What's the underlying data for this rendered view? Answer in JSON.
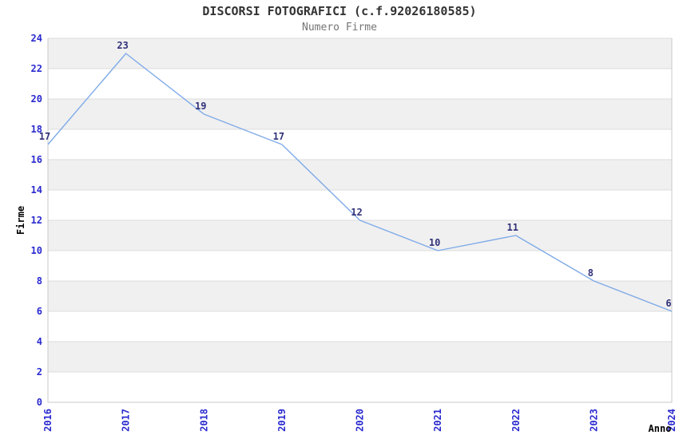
{
  "header": {
    "title": "DISCORSI FOTOGRAFICI (c.f.92026180585)",
    "subtitle": "Numero Firme"
  },
  "chart_data": {
    "type": "line",
    "title": "DISCORSI FOTOGRAFICI (c.f.92026180585)",
    "subtitle": "Numero Firme",
    "xlabel": "Anno",
    "ylabel": "Firme",
    "categories": [
      "2016",
      "2017",
      "2018",
      "2019",
      "2020",
      "2021",
      "2022",
      "2023",
      "2024"
    ],
    "series": [
      {
        "name": "Numero Firme",
        "values": [
          17,
          23,
          19,
          17,
          12,
          10,
          11,
          8,
          6
        ]
      }
    ],
    "point_labels": [
      "17",
      "23",
      "19",
      "17",
      "12",
      "10",
      "11",
      "8",
      "6"
    ],
    "ylim": [
      0,
      24
    ],
    "ytick_step": 2,
    "yticks": [
      0,
      2,
      4,
      6,
      8,
      10,
      12,
      14,
      16,
      18,
      20,
      22,
      24
    ],
    "grid": true,
    "band_style": "alternating-horizontal",
    "legend_position": "none",
    "x_tick_rotation": 90
  },
  "colors": {
    "line": "#7fabe8",
    "tick_label": "#2a2ad0",
    "data_label": "#31317a",
    "band": "#f0f0f0",
    "grid": "#dcdcdc",
    "border": "#c9c9c9",
    "title": "#333333",
    "subtitle": "#757575",
    "axis_label": "#000000",
    "background": "#ffffff"
  }
}
